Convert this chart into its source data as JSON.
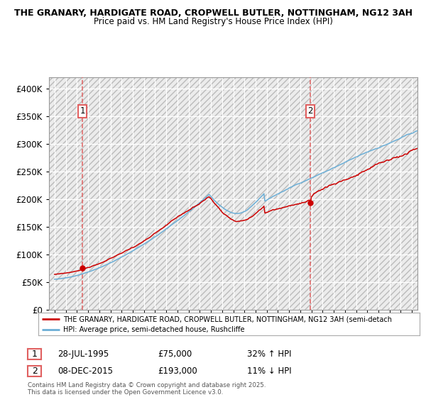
{
  "title1": "THE GRANARY, HARDIGATE ROAD, CROPWELL BUTLER, NOTTINGHAM, NG12 3AH",
  "title2": "Price paid vs. HM Land Registry's House Price Index (HPI)",
  "sale1_price": 75000,
  "sale1_datestr": "28-JUL-1995",
  "sale1_pct": "32% ↑ HPI",
  "sale2_price": 193000,
  "sale2_datestr": "08-DEC-2015",
  "sale2_pct": "11% ↓ HPI",
  "hpi_color": "#6baed6",
  "price_color": "#cc0000",
  "vline_color": "#e06060",
  "legend_label_red": "THE GRANARY, HARDIGATE ROAD, CROPWELL BUTLER, NOTTINGHAM, NG12 3AH (semi-detach",
  "legend_label_blue": "HPI: Average price, semi-detached house, Rushcliffe",
  "footnote": "Contains HM Land Registry data © Crown copyright and database right 2025.\nThis data is licensed under the Open Government Licence v3.0.",
  "ylim_max": 420000,
  "yticks": [
    0,
    50000,
    100000,
    150000,
    200000,
    250000,
    300000,
    350000,
    400000
  ],
  "ytick_labels": [
    "£0",
    "£50K",
    "£100K",
    "£150K",
    "£200K",
    "£250K",
    "£300K",
    "£350K",
    "£400K"
  ],
  "xstart_year": 1993,
  "xend_year": 2026
}
